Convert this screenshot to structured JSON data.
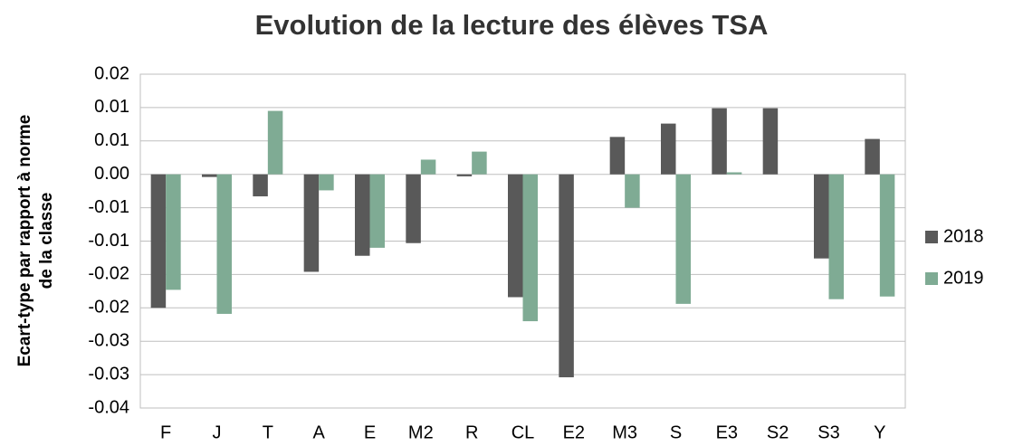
{
  "chart_data": {
    "type": "bar",
    "title": "Evolution de la lecture des élèves TSA",
    "y_label": [
      "Ecart-type par rapport à norme",
      "de la classe"
    ],
    "categories": [
      "F",
      "J",
      "T",
      "A",
      "E",
      "M2",
      "R",
      "CL",
      "E2",
      "M3",
      "S",
      "E3",
      "S2",
      "S3",
      "Y"
    ],
    "series": [
      {
        "name": "2018",
        "color": "#595959",
        "values": [
          -0.02,
          -0.0004,
          -0.0033,
          -0.0146,
          -0.0122,
          -0.0103,
          -0.0003,
          -0.0184,
          -0.0304,
          0.0056,
          0.0076,
          0.0099,
          0.0099,
          -0.0126,
          0.0053
        ]
      },
      {
        "name": "2019",
        "color": "#7fab94",
        "values": [
          -0.0173,
          -0.0209,
          0.0095,
          -0.0024,
          -0.011,
          0.0022,
          0.0034,
          -0.022,
          null,
          -0.005,
          -0.0194,
          0.0003,
          null,
          -0.0187,
          -0.0183
        ]
      }
    ],
    "ylim": [
      -0.035,
      0.015
    ],
    "yticks": [
      {
        "value": -0.035,
        "label": "-0.04"
      },
      {
        "value": -0.03,
        "label": "-0.03"
      },
      {
        "value": -0.025,
        "label": "-0.03"
      },
      {
        "value": -0.02,
        "label": "-0.02"
      },
      {
        "value": -0.015,
        "label": "-0.02"
      },
      {
        "value": -0.01,
        "label": "-0.01"
      },
      {
        "value": -0.005,
        "label": "-0.01"
      },
      {
        "value": 0,
        "label": "0.00"
      },
      {
        "value": 0.005,
        "label": "0.01"
      },
      {
        "value": 0.01,
        "label": "0.01"
      },
      {
        "value": 0.015,
        "label": "0.02"
      }
    ],
    "grid": true,
    "legend": "right"
  }
}
